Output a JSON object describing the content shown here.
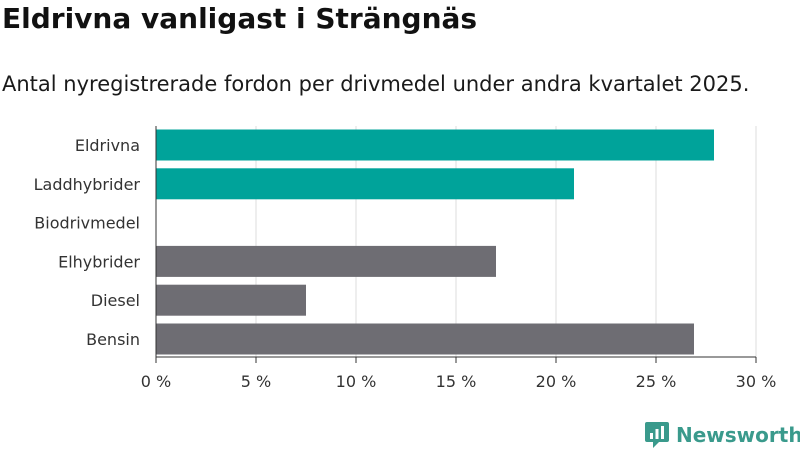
{
  "header": {
    "title": "Eldrivna vanligast i Strängnäs",
    "subtitle": "Antal nyregistrerade fordon per drivmedel under andra kvartalet 2025."
  },
  "chart_data": {
    "type": "bar",
    "orientation": "horizontal",
    "categories": [
      "Eldrivna",
      "Laddhybrider",
      "Biodrivmedel",
      "Elhybrider",
      "Diesel",
      "Bensin"
    ],
    "values": [
      27.9,
      20.9,
      0,
      17.0,
      7.5,
      26.9
    ],
    "bar_colors": [
      "#00a39a",
      "#00a39a",
      "#00a39a",
      "#6e6d73",
      "#6e6d73",
      "#6e6d73"
    ],
    "xlim": [
      0,
      30
    ],
    "xticks": [
      0,
      5,
      10,
      15,
      20,
      25,
      30
    ],
    "xtick_labels": [
      "0 %",
      "5 %",
      "10 %",
      "15 %",
      "20 %",
      "25 %",
      "30 %"
    ],
    "grid": true
  },
  "footer": {
    "logo_text": "Newsworthy",
    "logo_color": "#3a9a8c"
  }
}
